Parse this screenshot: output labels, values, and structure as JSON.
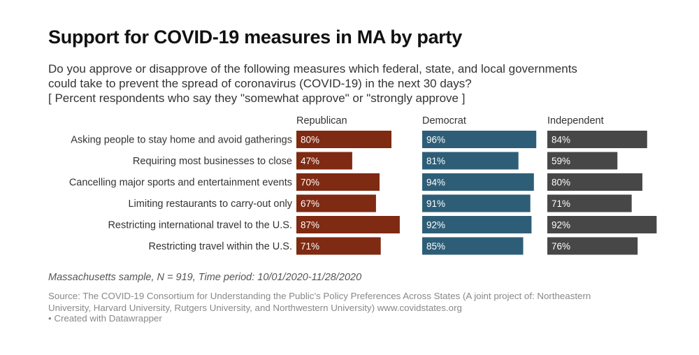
{
  "header": {
    "title": "Support for COVID-19 measures in MA by party",
    "description_lines": [
      "Do you approve or disapprove of the following measures which federal, state, and local governments",
      "could take to prevent the spread of coronavirus (COVID-19) in the next 30 days?",
      "[ Percent respondents who say they \"somewhat approve\" or \"strongly approve ]"
    ]
  },
  "chart_data": {
    "type": "bar",
    "orientation": "horizontal",
    "categories": [
      "Asking people to stay home and avoid gatherings",
      "Requiring most businesses to close",
      "Cancelling major sports and entertainment events",
      "Limiting restaurants to carry-out only",
      "Restricting international travel to the U.S.",
      "Restricting travel within the U.S."
    ],
    "series": [
      {
        "name": "Republican",
        "color": "#7f2a12",
        "values": [
          80,
          47,
          70,
          67,
          87,
          71
        ]
      },
      {
        "name": "Democrat",
        "color": "#2e5e77",
        "values": [
          96,
          81,
          94,
          91,
          92,
          85
        ]
      },
      {
        "name": "Independent",
        "color": "#474747",
        "values": [
          84,
          59,
          80,
          71,
          92,
          76
        ]
      }
    ],
    "value_suffix": "%",
    "xlim": [
      0,
      100
    ],
    "layout": "small-multiples"
  },
  "footer": {
    "note": "Massachusetts sample, N = 919, Time period: 10/01/2020-11/28/2020",
    "source_lines": [
      "Source: The COVID-19 Consortium for Understanding the Public’s Policy Preferences Across States (A joint project of: Northeastern",
      "University, Harvard University, Rutgers University, and Northwestern University) www.covidstates.org"
    ],
    "credit": "• Created with Datawrapper"
  }
}
